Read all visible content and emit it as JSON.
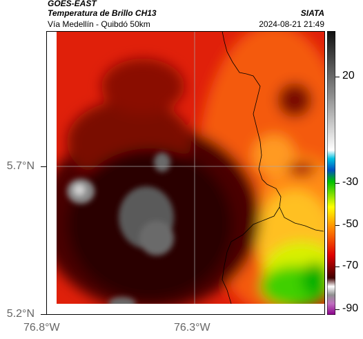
{
  "header": {
    "satellite": "GOES-EAST",
    "product": "Temperatura de Brillo CH13",
    "region": "Vía Medellín - Quibdó 50km",
    "source": "SIATA",
    "datetime": "2024-08-21 21:49"
  },
  "map": {
    "lat_labels": [
      "5.7°N",
      "5.2°N"
    ],
    "lon_labels": [
      "76.8°W",
      "76.3°W"
    ],
    "gridlines": true
  },
  "colorbar": {
    "tick_labels": [
      "20",
      "-30",
      "-50",
      "-70",
      "-90"
    ],
    "colors": [
      "#1a1a1a",
      "#ffffff",
      "#00a0d0",
      "#00c000",
      "#ffff00",
      "#ff8000",
      "#ff0000",
      "#600000",
      "#8b008b"
    ]
  }
}
